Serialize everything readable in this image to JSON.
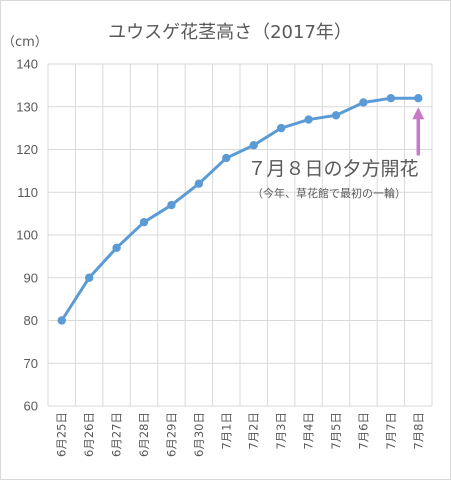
{
  "chart_data": {
    "type": "line",
    "title": "ユウスゲ花茎高さ（2017年）",
    "ylabel": "（cm）",
    "xlabel": "",
    "categories": [
      "6月25日",
      "6月26日",
      "6月27日",
      "6月28日",
      "6月29日",
      "6月30日",
      "7月1日",
      "7月2日",
      "7月3日",
      "7月4日",
      "7月5日",
      "7月6日",
      "7月7日",
      "7月8日"
    ],
    "series": [
      {
        "name": "",
        "values": [
          80,
          90,
          97,
          103,
          107,
          112,
          118,
          121,
          125,
          127,
          128,
          131,
          132,
          132
        ]
      }
    ],
    "ylim": [
      60,
      140
    ],
    "yticks": [
      60,
      70,
      80,
      90,
      100,
      110,
      120,
      130,
      140
    ],
    "grid": true,
    "annotation": {
      "main": "７月８日の夕方開花",
      "sub": "（今年、草花館で最初の一輪）",
      "target_index": 13
    },
    "colors": {
      "line": "#5b9bd5",
      "arrow": "#c879c8",
      "grid": "#d9d9d9",
      "text": "#595959"
    }
  }
}
